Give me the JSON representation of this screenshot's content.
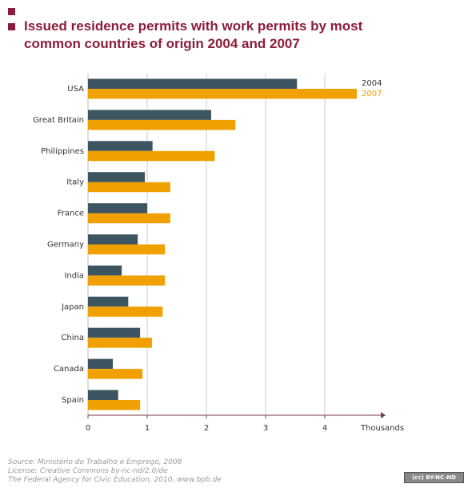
{
  "chart_data": {
    "type": "bar",
    "orientation": "horizontal",
    "title": "Issued residence permits with work permits by most common countries of origin 2004 and 2007",
    "categories": [
      "USA",
      "Great Britain",
      "Philippines",
      "Italy",
      "France",
      "Germany",
      "India",
      "Japan",
      "China",
      "Canada",
      "Spain"
    ],
    "series": [
      {
        "name": "2004",
        "color": "#3d5560",
        "values": [
          3.53,
          2.08,
          1.09,
          0.96,
          1.0,
          0.84,
          0.57,
          0.68,
          0.88,
          0.42,
          0.51
        ]
      },
      {
        "name": "2007",
        "color": "#f0a000",
        "values": [
          4.54,
          2.49,
          2.14,
          1.39,
          1.39,
          1.3,
          1.3,
          1.26,
          1.08,
          0.92,
          0.88
        ]
      }
    ],
    "xlim": [
      0,
      5
    ],
    "xticks": [
      0,
      1,
      2,
      3,
      4
    ],
    "x_label": "Thousands",
    "grid": true,
    "legend": "top-right",
    "source": [
      "Source: Ministério do Trabalho e Emprego, 2008",
      "License: Creative Commons by-nc-nd/2.0/de",
      "The Federal Agency for Civic Education, 2010, www.bpb.de"
    ],
    "license_badge": "BY-NC-ND"
  }
}
